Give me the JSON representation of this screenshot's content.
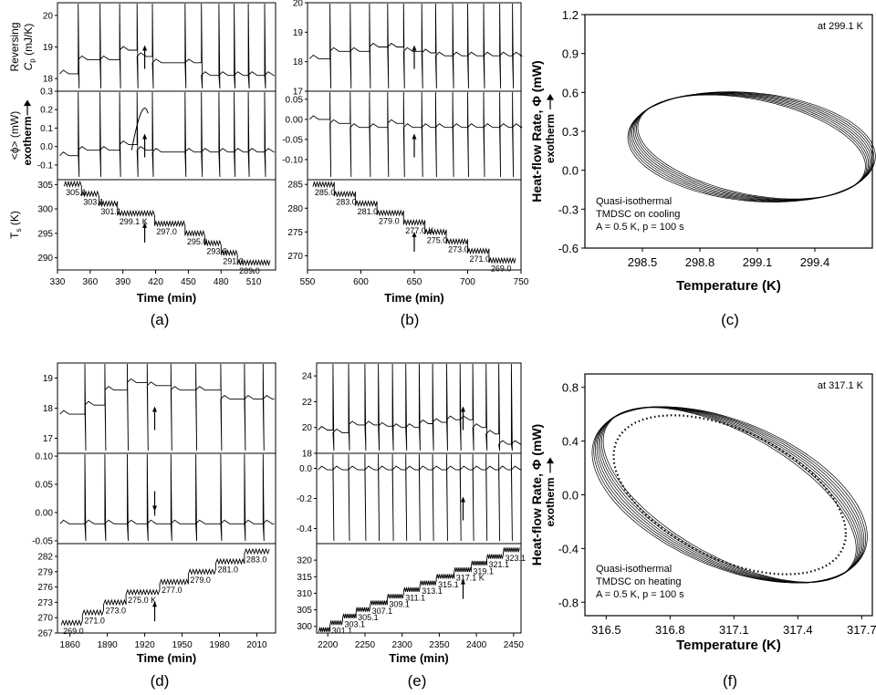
{
  "chart_data": [
    {
      "id": "a",
      "type": "line",
      "caption": "(a)",
      "xlabel": "Time (min)",
      "xlim": [
        330,
        530
      ],
      "xticks": [
        "330",
        "360",
        "390",
        "420",
        "450",
        "480",
        "510"
      ],
      "panels": {
        "cp": {
          "ylabel_line1": "Reversing",
          "ylabel_line2": "C",
          "ylabel_sub": "p",
          "ylabel_tail": " (mJ/K)",
          "ylim": [
            17.6,
            20.4
          ],
          "yticks": [
            "18",
            "19",
            "20"
          ],
          "step_levels": [
            18.15,
            18.6,
            18.6,
            18.9,
            18.7,
            18.5,
            18.5,
            18.1
          ],
          "spike_times": [
            349,
            369,
            387,
            403,
            417,
            447,
            462,
            478,
            492,
            505,
            520
          ]
        },
        "phi": {
          "ylabel_line1": "<ϕ> (mW)",
          "ylabel_line2": "exotherm",
          "ylim": [
            -0.18,
            0.3
          ],
          "yticks": [
            "-0.1",
            "0.0",
            "0.1",
            "0.2",
            "0.3"
          ],
          "step_levels": [
            -0.05,
            -0.02,
            -0.02,
            0.01,
            -0.02,
            -0.03,
            -0.03,
            -0.03
          ],
          "peak_value": 0.26,
          "spike_times": [
            349,
            369,
            387,
            403,
            417,
            447,
            462,
            478,
            492,
            505,
            520
          ]
        },
        "ts": {
          "ylabel": "T",
          "ylabel_sub": "s",
          "ylabel_tail": " (K)",
          "ylim": [
            287.5,
            306
          ],
          "yticks": [
            "290",
            "295",
            "300",
            "305"
          ],
          "steps": [
            {
              "t0": 336,
              "t1": 352,
              "T": 305.1,
              "label": "305.1"
            },
            {
              "t0": 352,
              "t1": 368,
              "T": 303.1,
              "label": "303.1"
            },
            {
              "t0": 368,
              "t1": 385,
              "T": 301.1,
              "label": "301.1"
            },
            {
              "t0": 385,
              "t1": 419,
              "T": 299.1,
              "label": "299.1 K"
            },
            {
              "t0": 419,
              "t1": 447,
              "T": 297.0,
              "label": "297.0"
            },
            {
              "t0": 447,
              "t1": 465,
              "T": 295.0,
              "label": "295.0"
            },
            {
              "t0": 465,
              "t1": 480,
              "T": 293.0,
              "label": "293.0"
            },
            {
              "t0": 480,
              "t1": 495,
              "T": 291.0,
              "label": "291.0"
            },
            {
              "t0": 495,
              "t1": 525,
              "T": 289.0,
              "label": "289.0"
            }
          ]
        }
      },
      "arrow_time": 410
    },
    {
      "id": "b",
      "type": "line",
      "caption": "(b)",
      "xlabel": "Time (min)",
      "xlim": [
        550,
        750
      ],
      "xticks": [
        "550",
        "600",
        "650",
        "700",
        "750"
      ],
      "panels": {
        "cp": {
          "ylim": [
            17,
            20
          ],
          "yticks": [
            "17",
            "18",
            "19",
            "20"
          ],
          "step_levels": [
            18.1,
            18.35,
            18.35,
            18.5,
            18.5,
            18.35,
            18.3,
            18.2,
            18.2
          ],
          "spike_times": [
            571,
            590,
            608,
            625,
            640,
            657,
            670,
            686,
            700,
            715,
            730,
            742
          ]
        },
        "phi": {
          "ylim": [
            -0.15,
            0.07
          ],
          "yticks": [
            "-0.10",
            "-0.05",
            "0.00",
            "0.05"
          ],
          "step_levels": [
            0.0,
            -0.01,
            -0.02,
            -0.02,
            -0.01,
            -0.02,
            -0.02,
            -0.02,
            -0.02
          ],
          "spike_times": [
            571,
            590,
            608,
            625,
            640,
            657,
            670,
            686,
            700,
            715,
            730,
            742
          ]
        },
        "ts": {
          "ylim": [
            267,
            286
          ],
          "yticks": [
            "270",
            "275",
            "280",
            "285"
          ],
          "steps": [
            {
              "t0": 555,
              "t1": 575,
              "T": 285.0,
              "label": "285.0"
            },
            {
              "t0": 575,
              "t1": 595,
              "T": 283.0,
              "label": "283.0"
            },
            {
              "t0": 595,
              "t1": 615,
              "T": 281.0,
              "label": "281.0"
            },
            {
              "t0": 615,
              "t1": 640,
              "T": 279.0,
              "label": "279.0"
            },
            {
              "t0": 640,
              "t1": 660,
              "T": 277.0,
              "label": "277.0 K"
            },
            {
              "t0": 660,
              "t1": 680,
              "T": 275.0,
              "label": "275.0"
            },
            {
              "t0": 680,
              "t1": 700,
              "T": 273.0,
              "label": "273.0"
            },
            {
              "t0": 700,
              "t1": 720,
              "T": 271.0,
              "label": "271.0"
            },
            {
              "t0": 720,
              "t1": 745,
              "T": 269.0,
              "label": "269.0"
            }
          ]
        }
      },
      "arrow_time": 650
    },
    {
      "id": "c",
      "type": "line",
      "caption": "(c)",
      "xlabel": "Temperature  (K)",
      "ylabel_line1": "Heat-flow Rate, Φ  (mW)",
      "ylabel_line2": "exotherm",
      "xlim": [
        298.2,
        299.7
      ],
      "ylim": [
        -0.6,
        1.2
      ],
      "xticks": [
        "298.5",
        "298.8",
        "299.1",
        "299.4"
      ],
      "yticks": [
        "-0.6",
        "-0.3",
        "0.0",
        "0.3",
        "0.6",
        "0.9",
        "1.2"
      ],
      "annotation": "at 299.1 K",
      "legend_lines": [
        "Quasi-isothermal",
        "TMDSC on cooling",
        "A = 0.5 K,  p = 100 s"
      ],
      "ellipse": {
        "cx": 299.07,
        "cy": 0.18,
        "ax": 0.62,
        "ay": 0.4,
        "tilt": -0.28
      }
    },
    {
      "id": "d",
      "type": "line",
      "caption": "(d)",
      "xlabel": "Time (min)",
      "xlim": [
        1850,
        2025
      ],
      "xticks": [
        "1860",
        "1890",
        "1920",
        "1950",
        "1980",
        "2010"
      ],
      "panels": {
        "cp": {
          "ylim": [
            16.5,
            19.5
          ],
          "yticks": [
            "17",
            "18",
            "19"
          ],
          "step_levels": [
            17.8,
            18.1,
            18.6,
            18.85,
            18.75,
            18.6,
            18.6,
            18.3
          ],
          "spike_times": [
            1872,
            1888,
            1906,
            1922,
            1941,
            1961,
            1981,
            2000,
            2015
          ]
        },
        "phi": {
          "ylim": [
            -0.055,
            0.105
          ],
          "yticks": [
            "-0.05",
            "0.00",
            "0.05",
            "0.10"
          ],
          "step_levels": [
            -0.02,
            -0.02,
            -0.02,
            -0.02,
            -0.02,
            -0.02,
            -0.02,
            -0.02
          ],
          "spike_times": [
            1872,
            1888,
            1906,
            1922,
            1941,
            1961,
            1981,
            2000,
            2015
          ]
        },
        "ts": {
          "ylim": [
            267,
            284.5
          ],
          "yticks": [
            "267",
            "270",
            "273",
            "276",
            "279",
            "282"
          ],
          "steps": [
            {
              "t0": 1853,
              "t1": 1870,
              "T": 269.0,
              "label": "269.0"
            },
            {
              "t0": 1870,
              "t1": 1887,
              "T": 271.0,
              "label": "271.0"
            },
            {
              "t0": 1887,
              "t1": 1905,
              "T": 273.0,
              "label": "273.0"
            },
            {
              "t0": 1905,
              "t1": 1932,
              "T": 275.0,
              "label": "275.0 K"
            },
            {
              "t0": 1932,
              "t1": 1955,
              "T": 277.0,
              "label": "277.0"
            },
            {
              "t0": 1955,
              "t1": 1977,
              "T": 279.0,
              "label": "279.0"
            },
            {
              "t0": 1977,
              "t1": 2000,
              "T": 281.0,
              "label": "281.0"
            },
            {
              "t0": 2000,
              "t1": 2020,
              "T": 283.0,
              "label": "283.0"
            }
          ]
        }
      },
      "arrow_time": 1928
    },
    {
      "id": "e",
      "type": "line",
      "caption": "(e)",
      "xlabel": "Time (min)",
      "xlim": [
        2185,
        2460
      ],
      "xticks": [
        "2200",
        "2250",
        "2300",
        "2350",
        "2400",
        "2450"
      ],
      "panels": {
        "cp": {
          "ylim": [
            18,
            25
          ],
          "yticks": [
            "18",
            "20",
            "22",
            "24"
          ],
          "step_levels": [
            19.8,
            19.6,
            20.2,
            20.2,
            20.1,
            20.0,
            20.0,
            20.3,
            20.4,
            20.6,
            20.6,
            20.0,
            19.5,
            18.7
          ],
          "spike_times": [
            2207,
            2228,
            2250,
            2268,
            2287,
            2305,
            2323,
            2341,
            2360,
            2378,
            2395,
            2413,
            2430,
            2447
          ]
        },
        "phi": {
          "ylim": [
            -0.5,
            0.1
          ],
          "yticks": [
            "-0.4",
            "-0.2",
            "0.0"
          ],
          "step_levels": [
            -0.01,
            -0.01,
            -0.01,
            -0.01,
            -0.01,
            -0.01,
            -0.01,
            -0.01,
            -0.01,
            -0.01,
            -0.01,
            -0.01,
            -0.01,
            -0.01
          ],
          "spike_times": [
            2207,
            2228,
            2250,
            2268,
            2287,
            2305,
            2323,
            2341,
            2360,
            2378,
            2395,
            2413,
            2430,
            2447
          ]
        },
        "ts": {
          "ylim": [
            298,
            325
          ],
          "yticks": [
            "300",
            "305",
            "310",
            "315",
            "320"
          ],
          "steps": [
            {
              "t0": 2188,
              "t1": 2203,
              "T": 299.0,
              "label": ""
            },
            {
              "t0": 2203,
              "t1": 2220,
              "T": 301.1,
              "label": "301.1"
            },
            {
              "t0": 2220,
              "t1": 2238,
              "T": 303.1,
              "label": "303.1"
            },
            {
              "t0": 2238,
              "t1": 2257,
              "T": 305.1,
              "label": "305.1"
            },
            {
              "t0": 2257,
              "t1": 2280,
              "T": 307.1,
              "label": "307.1"
            },
            {
              "t0": 2280,
              "t1": 2302,
              "T": 309.1,
              "label": "309.1"
            },
            {
              "t0": 2302,
              "t1": 2324,
              "T": 311.1,
              "label": "311.1"
            },
            {
              "t0": 2324,
              "t1": 2346,
              "T": 313.1,
              "label": "313.1"
            },
            {
              "t0": 2346,
              "t1": 2370,
              "T": 315.1,
              "label": "315.1"
            },
            {
              "t0": 2370,
              "t1": 2393,
              "T": 317.1,
              "label": "317.1 K"
            },
            {
              "t0": 2393,
              "t1": 2414,
              "T": 319.1,
              "label": "319.1"
            },
            {
              "t0": 2414,
              "t1": 2436,
              "T": 321.1,
              "label": "321.1"
            },
            {
              "t0": 2436,
              "t1": 2458,
              "T": 323.1,
              "label": "323.1"
            }
          ]
        }
      },
      "arrow_time": 2382
    },
    {
      "id": "f",
      "type": "line",
      "caption": "(f)",
      "xlabel": "Temperature  (K)",
      "ylabel_line1": "Heat-flow Rate, Φ  (mW)",
      "ylabel_line2": "exotherm",
      "xlim": [
        316.4,
        317.75
      ],
      "ylim": [
        -0.9,
        0.9
      ],
      "xticks": [
        "316.5",
        "316.8",
        "317.1",
        "317.4",
        "317.7"
      ],
      "yticks": [
        "-0.8",
        "-0.4",
        "0.0",
        "0.4",
        "0.8"
      ],
      "annotation": "at 317.1 K",
      "legend_lines": [
        "Quasi-isothermal",
        "TMDSC on heating",
        "A = 0.5 K,  p = 100 s"
      ],
      "ellipse": {
        "cx": 317.08,
        "cy": 0.0,
        "ax": 0.62,
        "ay": 0.55,
        "tilt": -0.75
      }
    }
  ]
}
